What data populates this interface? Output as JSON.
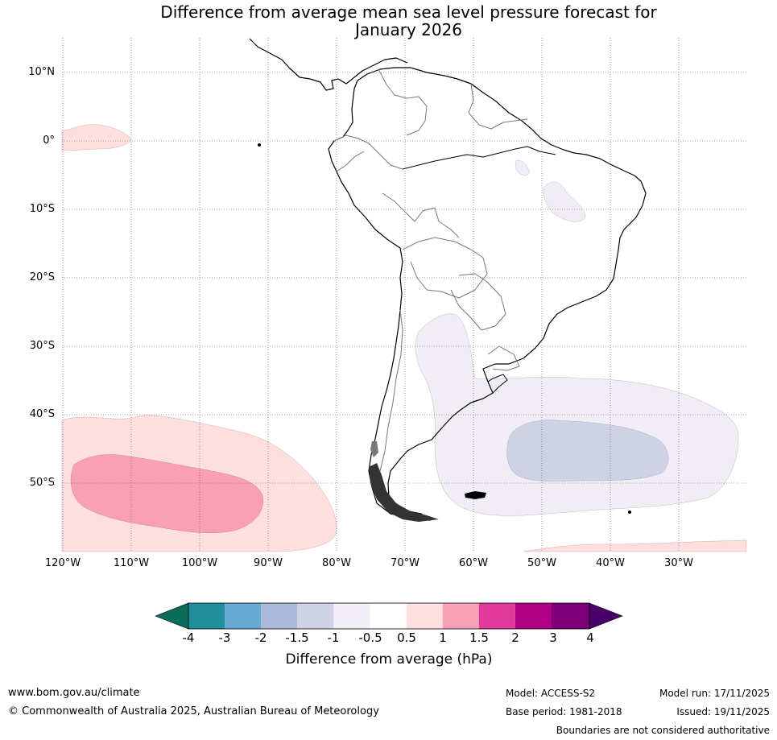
{
  "title": {
    "line1": "Difference from average mean sea level pressure forecast for",
    "line2": "January 2026"
  },
  "map": {
    "latitude_labels": [
      "10°N",
      "0°",
      "10°S",
      "20°S",
      "30°S",
      "40°S",
      "50°S"
    ],
    "longitude_labels": [
      "120°W",
      "110°W",
      "100°W",
      "90°W",
      "80°W",
      "70°W",
      "60°W",
      "50°W",
      "40°W",
      "30°W"
    ]
  },
  "colorbar": {
    "ticks": [
      "-4",
      "-3",
      "-2",
      "-1.5",
      "-1",
      "-0.5",
      "0.5",
      "1",
      "1.5",
      "2",
      "3",
      "4"
    ],
    "colors": {
      "below_-4": "#0c6b59",
      "-4_to_-3": "#1f8f9b",
      "-3_to_-2": "#67aad1",
      "-2_to_-1.5": "#a9bad8",
      "-1.5_to_-1": "#cfd1e5",
      "-1_to_-0.5": "#f0edf4",
      "-0.5_to_0.5": "#ffffff",
      "0.5_to_1": "#fddfdf",
      "1_to_1.5": "#f9a0b7",
      "1.5_to_2": "#e0389b",
      "2_to_3": "#ae0184",
      "3_to_4": "#7c017a",
      "above_4": "#49006a"
    },
    "label": "Difference from average (hPa)"
  },
  "footer": {
    "url": "www.bom.gov.au/climate",
    "copyright": "© Commonwealth of Australia 2025, Australian Bureau of Meteorology",
    "model": "Model: ACCESS-S2",
    "base_period": "Base period: 1981-2018",
    "model_run": "Model run: 17/11/2025",
    "issued": "Issued: 19/11/2025",
    "disclaimer": "Boundaries are not considered authoritative"
  }
}
